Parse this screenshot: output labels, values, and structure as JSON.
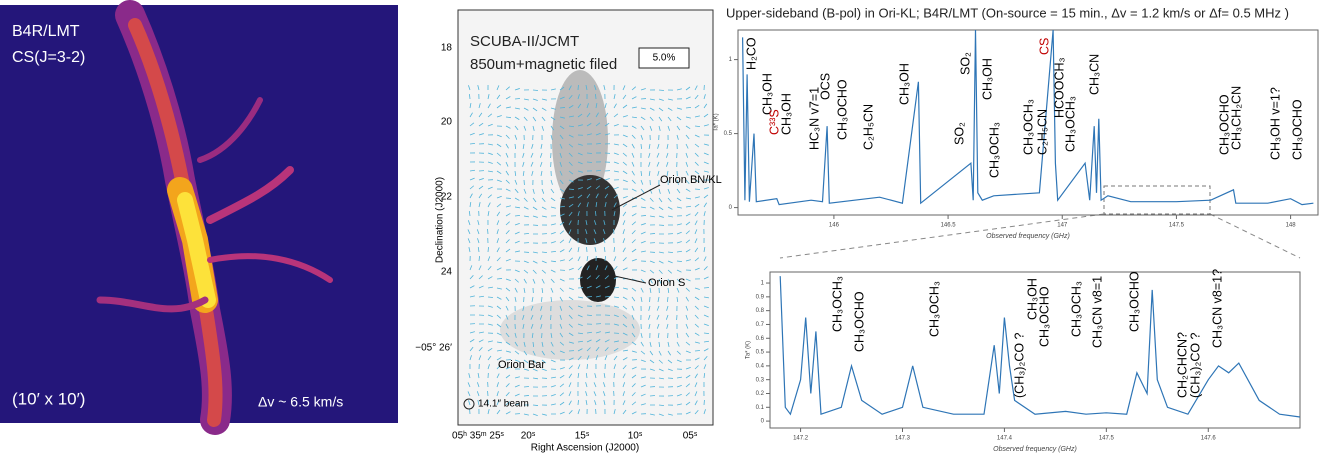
{
  "cs_map": {
    "title_lines": [
      "B4R/LMT",
      "CS(J=3-2)"
    ],
    "size_label": "(10′ x 10′)",
    "velocity_label": "Δv ~ 6.5 km/s"
  },
  "scuba_map": {
    "title_lines": [
      "SCUBA-II/JCMT",
      "850um+magnetic filed"
    ],
    "scale_box": "5.0%",
    "y_label": "Declination (J2000)",
    "x_label": "Right Ascension (J2000)",
    "y_tick_labels": [
      "18",
      "20",
      "22",
      "24",
      "−05° 26′"
    ],
    "x_tick_labels": [
      "05ʰ 35ᵐ 25ˢ",
      "20ˢ",
      "15ˢ",
      "10ˢ",
      "05ˢ"
    ],
    "annotations": [
      "Orion BN/KL",
      "Orion S",
      "Orion Bar"
    ],
    "beam": "14.1″ beam"
  },
  "chart_data": [
    {
      "type": "line",
      "title": "Upper-sideband (B-pol) in Ori-KL; B4R/LMT (On-source = 15 min., Δv = 1.2 km/s or Δf= 0.5 MHz )",
      "x_label": "Observed frequency (GHz)",
      "y_label": "Ta* (K)",
      "color": "#2e75b6",
      "xlim": [
        145.58,
        148.12
      ],
      "xticks": [
        146,
        146.5,
        147,
        147.5,
        148
      ],
      "ylim": [
        -0.05,
        1.2
      ],
      "yticks": [
        0,
        0.5,
        1
      ],
      "x": [
        145.6,
        145.61,
        145.62,
        145.63,
        145.65,
        145.66,
        145.75,
        145.76,
        145.9,
        145.95,
        145.97,
        145.98,
        146.2,
        146.3,
        146.37,
        146.38,
        146.6,
        146.61,
        146.62,
        146.63,
        146.65,
        146.7,
        146.9,
        146.96,
        146.97,
        146.98,
        147.1,
        147.12,
        147.14,
        147.15,
        147.16,
        147.17,
        147.2,
        147.3,
        147.5,
        147.65,
        147.75,
        147.76,
        147.9,
        148.0,
        148.05,
        148.1
      ],
      "values": [
        1.15,
        0.05,
        0.9,
        0.04,
        0.5,
        0.04,
        0.06,
        0.02,
        0.05,
        0.04,
        0.55,
        0.03,
        0.07,
        0.03,
        0.85,
        0.03,
        0.3,
        0.05,
        1.2,
        0.1,
        0.05,
        0.08,
        0.1,
        1.2,
        0.3,
        0.05,
        0.3,
        0.05,
        0.55,
        0.1,
        0.6,
        0.05,
        0.08,
        0.04,
        0.04,
        0.05,
        0.12,
        0.03,
        0.03,
        0.06,
        0.02,
        0.03
      ],
      "labels": [
        "H₂CO",
        "CH₃OH",
        "C³³S",
        "CH₃OH",
        "HC₃N v7=1",
        "OCS",
        "CH₃OCHO",
        "C₂H₅CN",
        "CH₃OH",
        "SO₂",
        "SO₂",
        "CH₃OH",
        "CH₃OCH₃",
        "CS",
        "HCOOCH₃",
        "CH₃OCH₃",
        "C₂H₅CN",
        "CH₃OCH₃",
        "CH₃CN",
        "CH₃OCHO",
        "CH₃CH₂CN",
        "CH₃OH v=1?",
        "CH₃OCHO"
      ]
    },
    {
      "type": "line",
      "x_label": "Observed frequency (GHz)",
      "y_label": "Ta* (K)",
      "color": "#2e75b6",
      "xlim": [
        147.17,
        147.69
      ],
      "xticks": [
        147.2,
        147.3,
        147.4,
        147.5,
        147.6
      ],
      "ylim": [
        -0.05,
        1.08
      ],
      "yticks": [
        0,
        0.1,
        0.2,
        0.3,
        0.4,
        0.5,
        0.6,
        0.7,
        0.8,
        0.9,
        1
      ],
      "x": [
        147.18,
        147.185,
        147.19,
        147.2,
        147.205,
        147.21,
        147.215,
        147.22,
        147.24,
        147.25,
        147.26,
        147.28,
        147.3,
        147.31,
        147.32,
        147.35,
        147.38,
        147.39,
        147.395,
        147.4,
        147.405,
        147.41,
        147.43,
        147.46,
        147.48,
        147.5,
        147.52,
        147.53,
        147.54,
        147.545,
        147.55,
        147.56,
        147.58,
        147.6,
        147.61,
        147.62,
        147.63,
        147.65,
        147.67,
        147.69
      ],
      "values": [
        1.05,
        0.1,
        0.05,
        0.3,
        0.75,
        0.2,
        0.65,
        0.05,
        0.1,
        0.4,
        0.15,
        0.05,
        0.1,
        0.4,
        0.1,
        0.05,
        0.05,
        0.55,
        0.2,
        0.75,
        0.4,
        0.15,
        0.05,
        0.07,
        0.05,
        0.06,
        0.05,
        0.35,
        0.2,
        0.95,
        0.3,
        0.1,
        0.05,
        0.3,
        0.4,
        0.35,
        0.42,
        0.15,
        0.05,
        0.03
      ],
      "labels": [
        "CH₃OCH₃",
        "CH₃OCHO",
        "CH₃OCH₃",
        "(CH₃)₂CO ?",
        "CH₃OH",
        "CH₃OCHO",
        "CH₃OCH₃",
        "CH₃CN v8=1",
        "CH₃OCHO",
        "CH₂CHCN?",
        "(CH₃)₂CO ?",
        "CH₃CN v8=1?"
      ]
    }
  ]
}
